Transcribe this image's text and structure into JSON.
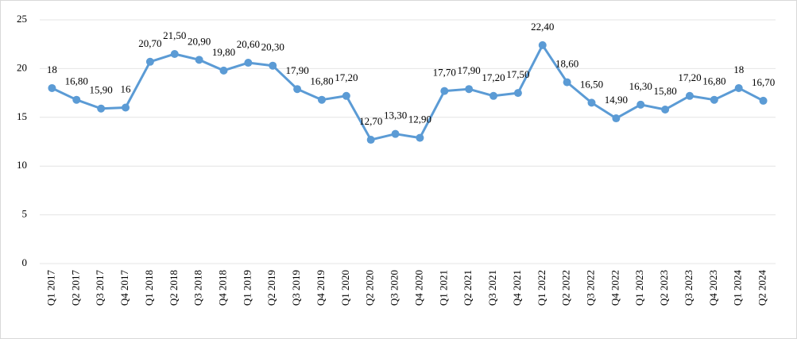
{
  "chart_data": {
    "type": "line",
    "categories": [
      "Q1 2017",
      "Q2 2017",
      "Q3 2017",
      "Q4 2017",
      "Q1 2018",
      "Q2 2018",
      "Q3 2018",
      "Q4 2018",
      "Q1 2019",
      "Q2 2019",
      "Q3 2019",
      "Q4 2019",
      "Q1 2020",
      "Q2 2020",
      "Q3 2020",
      "Q4 2020",
      "Q1 2021",
      "Q2 2021",
      "Q3 2021",
      "Q4 2021",
      "Q1 2022",
      "Q2 2022",
      "Q3 2022",
      "Q4 2022",
      "Q1 2023",
      "Q2 2023",
      "Q3 2023",
      "Q4 2023",
      "Q1 2024",
      "Q2 2024"
    ],
    "values": [
      18,
      16.8,
      15.9,
      16,
      20.7,
      21.5,
      20.9,
      19.8,
      20.6,
      20.3,
      17.9,
      16.8,
      17.2,
      12.7,
      13.3,
      12.9,
      17.7,
      17.9,
      17.2,
      17.5,
      22.4,
      18.6,
      16.5,
      14.9,
      16.3,
      15.8,
      17.2,
      16.8,
      18,
      16.7
    ],
    "value_labels": [
      "18",
      "16,80",
      "15,90",
      "16",
      "20,70",
      "21,50",
      "20,90",
      "19,80",
      "20,60",
      "20,30",
      "17,90",
      "16,80",
      "17,20",
      "12,70",
      "13,30",
      "12,90",
      "17,70",
      "17,90",
      "17,20",
      "17,50",
      "22,40",
      "18,60",
      "16,50",
      "14,90",
      "16,30",
      "15,80",
      "17,20",
      "16,80",
      "18",
      "16,70"
    ],
    "color": "#5b9bd5",
    "ylim": [
      0,
      25
    ],
    "yticks": [
      0,
      5,
      10,
      15,
      20,
      25
    ],
    "grid": true
  }
}
